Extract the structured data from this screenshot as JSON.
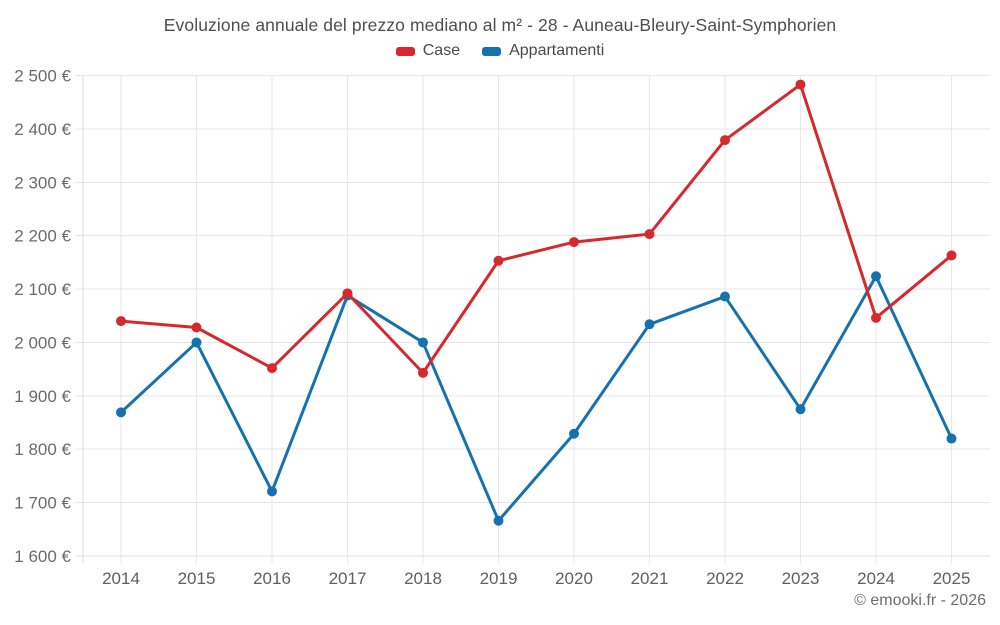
{
  "title": "Evoluzione annuale del prezzo mediano al m² - 28 - Auneau-Bleury-Saint-Symphorien",
  "footer": "© emooki.fr - 2026",
  "legend": [
    {
      "label": "Case",
      "color": "#d7282d"
    },
    {
      "label": "Appartamenti",
      "color": "#1672ae"
    }
  ],
  "colors": {
    "case": "#d7282d",
    "appartamenti": "#1672ae",
    "grid": "#e7e7e7",
    "axis": "#dcdcdc",
    "tick_text": "#6b6b6b"
  },
  "chart_data": {
    "type": "line",
    "title": "Evoluzione annuale del prezzo mediano al m² - 28 - Auneau-Bleury-Saint-Symphorien",
    "x": [
      2014,
      2015,
      2016,
      2017,
      2018,
      2019,
      2020,
      2021,
      2022,
      2023,
      2024,
      2025
    ],
    "series": [
      {
        "name": "Case",
        "color": "#d7282d",
        "values": [
          2040,
          2028,
          1952,
          2092,
          1943,
          2153,
          2188,
          2203,
          2379,
          2483,
          2046,
          2163
        ]
      },
      {
        "name": "Appartamenti",
        "color": "#1672ae",
        "values": [
          1869,
          2000,
          1721,
          2088,
          2000,
          1666,
          1829,
          2034,
          2086,
          1875,
          2124,
          1820
        ]
      }
    ],
    "ylim": [
      1600,
      2500
    ],
    "ytick_step": 100,
    "ytick_suffix": " €",
    "xlabel": "",
    "ylabel": "",
    "grid": true,
    "legend_position": "top",
    "marker": "circle"
  }
}
